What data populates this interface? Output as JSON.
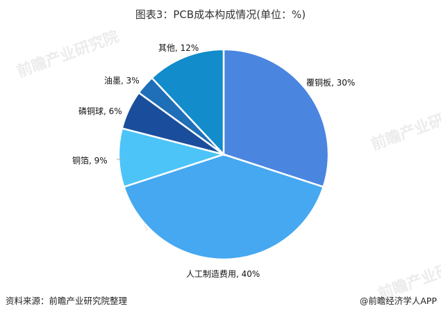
{
  "title": "图表3：PCB成本构成情况(单位：%)",
  "footer": {
    "source": "资料来源：前瞻产业研究院整理",
    "credit": "@前瞻经济学人APP"
  },
  "watermark": "前瞻产业研究院",
  "labels": {
    "fuTongBan": "覆铜板, 30%",
    "rengong": "人工制造费用, 40%",
    "tongbo": "铜箔, 9%",
    "lintongqiu": "磷铜球, 6%",
    "youmo": "油墨, 3%",
    "qita": "其他, 12%"
  },
  "chart_data": {
    "type": "pie",
    "title": "图表3：PCB成本构成情况(单位：%)",
    "categories": [
      "覆铜板",
      "人工制造费用",
      "铜箔",
      "磷铜球",
      "油墨",
      "其他"
    ],
    "values": [
      30,
      40,
      9,
      6,
      3,
      12
    ],
    "colors": [
      "#4A86E0",
      "#45A8F0",
      "#4CC4F8",
      "#1A4E9C",
      "#1F6FB8",
      "#128CCB"
    ],
    "start_angle": "12 o'clock, clockwise",
    "legend": "none (data labels outside slices)"
  }
}
